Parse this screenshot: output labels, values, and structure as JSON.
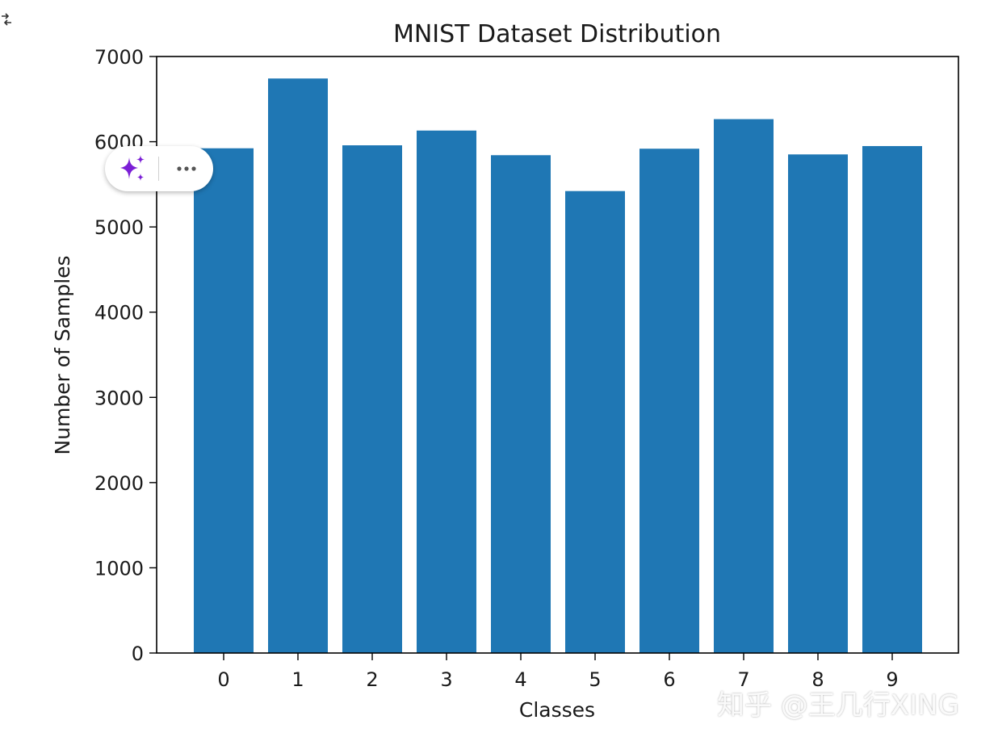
{
  "chart_data": {
    "type": "bar",
    "title": "MNIST Dataset Distribution",
    "xlabel": "Classes",
    "ylabel": "Number of Samples",
    "categories": [
      "0",
      "1",
      "2",
      "3",
      "4",
      "5",
      "6",
      "7",
      "8",
      "9"
    ],
    "values": [
      5923,
      6742,
      5958,
      6131,
      5842,
      5421,
      5918,
      6265,
      5851,
      5949
    ],
    "ylim": [
      0,
      7000
    ],
    "yticks": [
      "0",
      "1000",
      "2000",
      "3000",
      "4000",
      "5000",
      "6000",
      "7000"
    ],
    "bar_color": "#1f77b4",
    "grid": false
  },
  "watermark": "知乎 @王几行XING",
  "toolbar": {
    "icons": [
      "sparkle-icon",
      "more-icon"
    ]
  }
}
